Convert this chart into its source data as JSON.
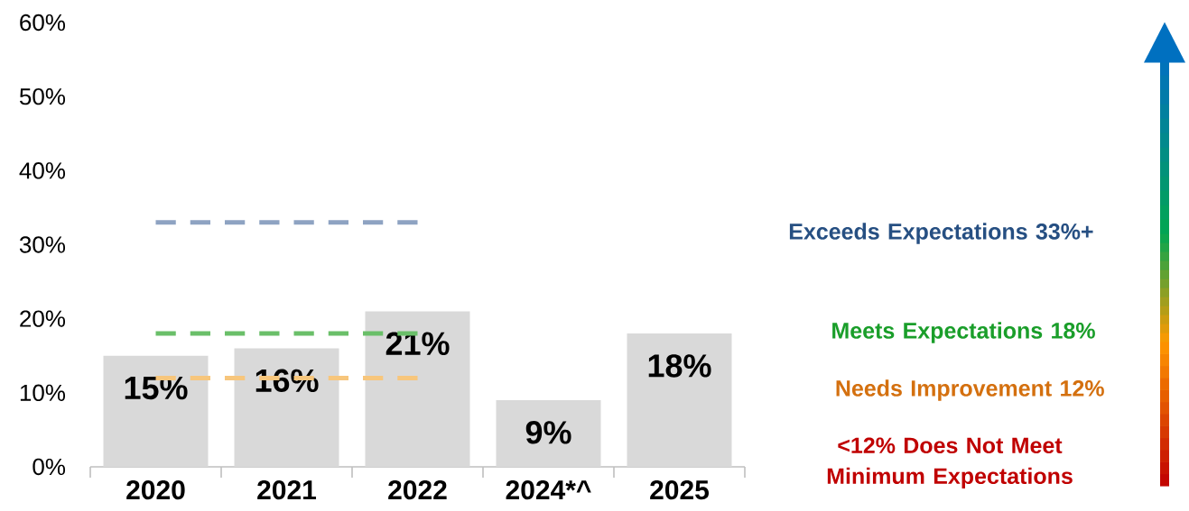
{
  "chart_data": {
    "type": "bar",
    "categories": [
      "2020",
      "2021",
      "2022",
      "2024*^",
      "2025"
    ],
    "series": [
      {
        "color": "#d9d9d9",
        "values": [
          15,
          16,
          21,
          9,
          18
        ],
        "value_labels": [
          "15%",
          "16%",
          "21%",
          "9%",
          "18%"
        ]
      },
      {
        "type": "line",
        "color": "#8ea3c2",
        "line_style": "dashed",
        "values": [
          33,
          33,
          33,
          null,
          null
        ]
      },
      {
        "type": "line",
        "color": "#6abf69",
        "line_style": "dashed",
        "values": [
          18,
          18,
          18,
          null,
          null
        ]
      },
      {
        "type": "line",
        "color": "#f7c67c",
        "line_style": "dashed",
        "values": [
          12,
          12,
          12,
          null,
          null
        ]
      }
    ],
    "ylim": [
      0,
      60
    ],
    "yticks": [
      {
        "value": 0,
        "label": "0%"
      },
      {
        "value": 10,
        "label": "10%"
      },
      {
        "value": 20,
        "label": "20%"
      },
      {
        "value": 30,
        "label": "30%"
      },
      {
        "value": 40,
        "label": "40%"
      },
      {
        "value": 50,
        "label": "50%"
      },
      {
        "value": 60,
        "label": "60%"
      }
    ],
    "annotations": [
      "Exceeds Expectations 33%+",
      "Meets Expectations 18%",
      "Needs Improvement 12%",
      "<12% Does Not Meet Minimum Expectations"
    ],
    "grid": false,
    "marker": "none"
  }
}
